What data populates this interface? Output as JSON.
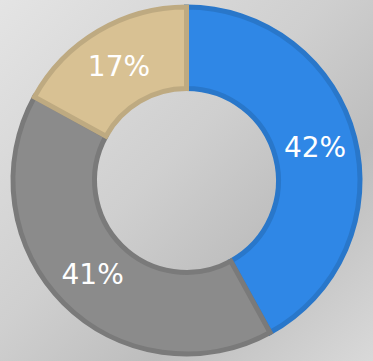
{
  "chart_data": {
    "type": "pie",
    "values": [
      42,
      41,
      17
    ],
    "value_labels": [
      "42%",
      "41%",
      "17%"
    ],
    "colors": [
      "#2f87e6",
      "#8b8b8b",
      "#d8c193"
    ],
    "data_labels": true
  }
}
